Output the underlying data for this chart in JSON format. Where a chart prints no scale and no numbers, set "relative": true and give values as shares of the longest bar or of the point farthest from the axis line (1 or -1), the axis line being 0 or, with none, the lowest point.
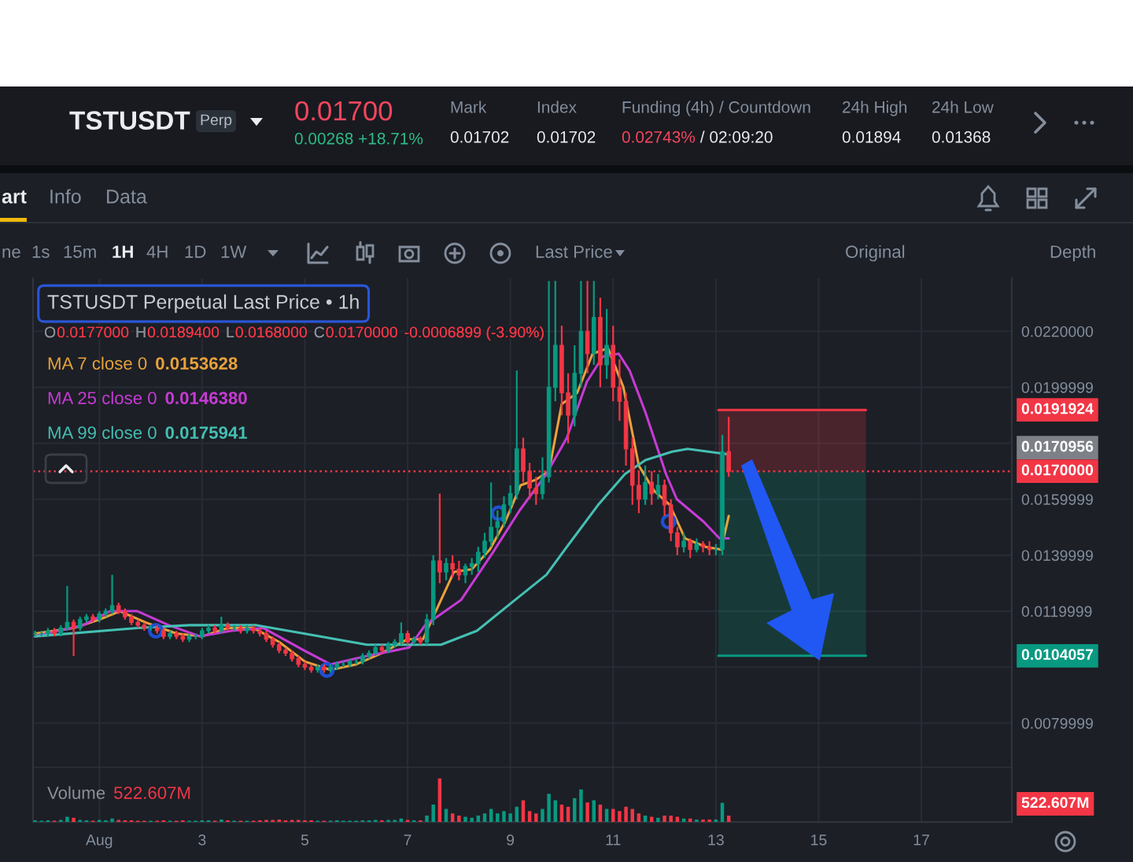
{
  "chart_data": [
    {
      "type": "other",
      "annotations": [
        "TSTUSDT",
        "Perp",
        "0.01700",
        "0.00268 +18.71%",
        "Mark",
        "0.01702",
        "Index",
        "0.01702",
        "Funding (4h) / Countdown",
        "0.02743%",
        "/ 02:09:20",
        "24h High",
        "0.01894",
        "24h Low",
        "0.01368",
        "art",
        "Info",
        "Data",
        "ne",
        "1s",
        "15m",
        "1H",
        "4H",
        "1D",
        "1W",
        "Last Price",
        "Original",
        "Depth"
      ]
    },
    {
      "type": "candlestick",
      "title": "TSTUSDT Perpetual Last Price • 1h",
      "legend": "top left",
      "x": [
        -0.25,
        -0.125,
        0,
        0.125,
        0.25,
        0.375,
        0.5,
        0.625,
        0.75,
        0.875,
        1,
        1.125,
        1.25,
        1.375,
        1.5,
        1.625,
        1.75,
        1.875,
        2,
        2.125,
        2.25,
        2.375,
        2.5,
        2.625,
        2.75,
        2.875,
        3,
        3.125,
        3.25,
        3.375,
        3.5,
        3.625,
        3.75,
        3.875,
        4,
        4.125,
        4.25,
        4.375,
        4.5,
        4.625,
        4.75,
        4.875,
        5,
        5.125,
        5.25,
        5.375,
        5.5,
        5.625,
        5.75,
        5.875,
        6,
        6.125,
        6.25,
        6.375,
        6.5,
        6.625,
        6.75,
        6.875,
        7,
        7.125,
        7.25,
        7.375,
        7.5,
        7.625,
        7.75,
        7.875,
        8,
        8.125,
        8.25,
        8.375,
        8.5,
        8.625,
        8.75,
        8.875,
        9,
        9.125,
        9.25,
        9.375,
        9.5,
        9.625,
        9.75,
        9.875,
        10,
        10.125,
        10.25,
        10.375,
        10.5,
        10.625,
        10.75,
        10.875,
        11,
        11.125,
        11.25,
        11.375,
        11.5,
        11.625,
        11.75,
        11.875,
        12,
        12.125,
        12.25,
        12.375,
        12.5,
        12.625,
        12.75,
        12.875,
        13,
        13.125,
        13.25
      ],
      "ohlc": [
        [
          0.0112,
          0.0113,
          0.0111,
          0.0112
        ],
        [
          0.0112,
          0.0113,
          0.0111,
          0.0112
        ],
        [
          0.0112,
          0.0114,
          0.0111,
          0.0113
        ],
        [
          0.0113,
          0.0114,
          0.0111,
          0.0112
        ],
        [
          0.0112,
          0.0115,
          0.0111,
          0.0114
        ],
        [
          0.0114,
          0.0129,
          0.0113,
          0.0116
        ],
        [
          0.0116,
          0.0117,
          0.0104,
          0.0114
        ],
        [
          0.0114,
          0.0118,
          0.0113,
          0.0117
        ],
        [
          0.0117,
          0.0119,
          0.0116,
          0.0118
        ],
        [
          0.0118,
          0.0119,
          0.0116,
          0.0117
        ],
        [
          0.0117,
          0.012,
          0.0116,
          0.0119
        ],
        [
          0.0119,
          0.0121,
          0.0118,
          0.012
        ],
        [
          0.012,
          0.0133,
          0.0119,
          0.0122
        ],
        [
          0.0122,
          0.0123,
          0.0119,
          0.012
        ],
        [
          0.012,
          0.0121,
          0.0117,
          0.0118
        ],
        [
          0.0118,
          0.0119,
          0.0115,
          0.0116
        ],
        [
          0.0116,
          0.0117,
          0.0114,
          0.0115
        ],
        [
          0.0115,
          0.0116,
          0.0113,
          0.0114
        ],
        [
          0.0114,
          0.0115,
          0.0113,
          0.0114
        ],
        [
          0.0114,
          0.0115,
          0.0112,
          0.0113
        ],
        [
          0.0113,
          0.0114,
          0.011,
          0.0111
        ],
        [
          0.0111,
          0.0113,
          0.011,
          0.0112
        ],
        [
          0.0112,
          0.0113,
          0.011,
          0.0111
        ],
        [
          0.0111,
          0.0112,
          0.0109,
          0.011
        ],
        [
          0.011,
          0.0112,
          0.0109,
          0.0111
        ],
        [
          0.0111,
          0.0112,
          0.011,
          0.0111
        ],
        [
          0.0111,
          0.0114,
          0.011,
          0.0113
        ],
        [
          0.0113,
          0.0115,
          0.0112,
          0.0114
        ],
        [
          0.0114,
          0.0115,
          0.0112,
          0.0113
        ],
        [
          0.0113,
          0.0118,
          0.0112,
          0.0115
        ],
        [
          0.0115,
          0.0116,
          0.0113,
          0.0114
        ],
        [
          0.0114,
          0.0115,
          0.0113,
          0.0114
        ],
        [
          0.0114,
          0.0115,
          0.0112,
          0.0113
        ],
        [
          0.0113,
          0.0115,
          0.0112,
          0.0114
        ],
        [
          0.0114,
          0.0115,
          0.0112,
          0.0113
        ],
        [
          0.0113,
          0.0114,
          0.0111,
          0.0112
        ],
        [
          0.0112,
          0.0113,
          0.0109,
          0.011
        ],
        [
          0.011,
          0.0111,
          0.0107,
          0.0108
        ],
        [
          0.0108,
          0.0109,
          0.0105,
          0.0106
        ],
        [
          0.0106,
          0.0107,
          0.0104,
          0.0105
        ],
        [
          0.0105,
          0.0106,
          0.0102,
          0.0103
        ],
        [
          0.0103,
          0.0104,
          0.01,
          0.0101
        ],
        [
          0.0101,
          0.0102,
          0.0099,
          0.01
        ],
        [
          0.01,
          0.0101,
          0.0098,
          0.0099
        ],
        [
          0.0099,
          0.0101,
          0.0098,
          0.01
        ],
        [
          0.01,
          0.0101,
          0.0098,
          0.0099
        ],
        [
          0.0099,
          0.0101,
          0.0098,
          0.01
        ],
        [
          0.01,
          0.0102,
          0.0099,
          0.0101
        ],
        [
          0.0101,
          0.0102,
          0.01,
          0.0101
        ],
        [
          0.0101,
          0.0103,
          0.01,
          0.0102
        ],
        [
          0.0102,
          0.0103,
          0.0101,
          0.0102
        ],
        [
          0.0102,
          0.0105,
          0.0101,
          0.0104
        ],
        [
          0.0104,
          0.0106,
          0.0103,
          0.0105
        ],
        [
          0.0105,
          0.0108,
          0.0104,
          0.0107
        ],
        [
          0.0107,
          0.0108,
          0.0105,
          0.0106
        ],
        [
          0.0106,
          0.0109,
          0.0105,
          0.0108
        ],
        [
          0.0108,
          0.011,
          0.0107,
          0.0109
        ],
        [
          0.0109,
          0.0116,
          0.0108,
          0.0112
        ],
        [
          0.0112,
          0.0113,
          0.0108,
          0.0109
        ],
        [
          0.0109,
          0.0111,
          0.0108,
          0.011
        ],
        [
          0.011,
          0.0111,
          0.0108,
          0.0109
        ],
        [
          0.0109,
          0.0119,
          0.0108,
          0.0117
        ],
        [
          0.0117,
          0.014,
          0.0115,
          0.0138
        ],
        [
          0.0138,
          0.0162,
          0.013,
          0.0134
        ],
        [
          0.0134,
          0.0139,
          0.0131,
          0.0137
        ],
        [
          0.0137,
          0.014,
          0.0132,
          0.0135
        ],
        [
          0.0135,
          0.0138,
          0.0131,
          0.0133
        ],
        [
          0.0133,
          0.0137,
          0.013,
          0.0136
        ],
        [
          0.0136,
          0.0139,
          0.0133,
          0.0137
        ],
        [
          0.0137,
          0.0143,
          0.0134,
          0.0141
        ],
        [
          0.0141,
          0.0148,
          0.0139,
          0.0145
        ],
        [
          0.0145,
          0.0166,
          0.0143,
          0.015
        ],
        [
          0.015,
          0.0156,
          0.0146,
          0.0152
        ],
        [
          0.0152,
          0.0161,
          0.015,
          0.0158
        ],
        [
          0.0158,
          0.0165,
          0.0155,
          0.0162
        ],
        [
          0.0162,
          0.0206,
          0.016,
          0.0178
        ],
        [
          0.0178,
          0.0182,
          0.0166,
          0.017
        ],
        [
          0.017,
          0.0173,
          0.016,
          0.0164
        ],
        [
          0.0164,
          0.0168,
          0.0158,
          0.0162
        ],
        [
          0.0162,
          0.0175,
          0.016,
          0.0168
        ],
        [
          0.0168,
          0.0238,
          0.0166,
          0.02
        ],
        [
          0.02,
          0.0238,
          0.0195,
          0.0215
        ],
        [
          0.0215,
          0.0222,
          0.019,
          0.0198
        ],
        [
          0.0198,
          0.0205,
          0.018,
          0.019
        ],
        [
          0.019,
          0.0215,
          0.0186,
          0.0205
        ],
        [
          0.0205,
          0.0238,
          0.02,
          0.022
        ],
        [
          0.022,
          0.0238,
          0.0205,
          0.0212
        ],
        [
          0.0212,
          0.0238,
          0.0208,
          0.0225
        ],
        [
          0.0225,
          0.0232,
          0.02,
          0.0208
        ],
        [
          0.0208,
          0.0228,
          0.0203,
          0.0215
        ],
        [
          0.0215,
          0.0222,
          0.0195,
          0.02
        ],
        [
          0.02,
          0.021,
          0.0188,
          0.0195
        ],
        [
          0.0195,
          0.0198,
          0.0172,
          0.0178
        ],
        [
          0.0178,
          0.0182,
          0.0158,
          0.0165
        ],
        [
          0.0165,
          0.017,
          0.0155,
          0.016
        ],
        [
          0.016,
          0.0172,
          0.0158,
          0.0166
        ],
        [
          0.0166,
          0.017,
          0.0158,
          0.0162
        ],
        [
          0.0162,
          0.0169,
          0.016,
          0.0165
        ],
        [
          0.0165,
          0.0167,
          0.0154,
          0.0158
        ],
        [
          0.0158,
          0.016,
          0.0145,
          0.0148
        ],
        [
          0.0148,
          0.015,
          0.014,
          0.0143
        ],
        [
          0.0143,
          0.0148,
          0.0141,
          0.0145
        ],
        [
          0.0145,
          0.0146,
          0.0139,
          0.0142
        ],
        [
          0.0142,
          0.0146,
          0.0141,
          0.0144
        ],
        [
          0.0144,
          0.0145,
          0.0141,
          0.0143
        ],
        [
          0.0143,
          0.0145,
          0.014,
          0.0142
        ],
        [
          0.0142,
          0.0144,
          0.014,
          0.0142
        ],
        [
          0.0142,
          0.0183,
          0.014,
          0.0177
        ],
        [
          0.0177,
          0.01894,
          0.0168,
          0.017
        ]
      ],
      "colors": [
        "#089981",
        "#089981",
        "#089981",
        "#f23645",
        "#089981",
        "#089981",
        "#f23645",
        "#089981",
        "#089981",
        "#f23645",
        "#089981",
        "#089981",
        "#089981",
        "#f23645",
        "#f23645",
        "#f23645",
        "#f23645",
        "#f23645",
        "#089981",
        "#f23645",
        "#f23645",
        "#089981",
        "#f23645",
        "#f23645",
        "#089981",
        "#089981",
        "#089981",
        "#089981",
        "#f23645",
        "#089981",
        "#f23645",
        "#089981",
        "#f23645",
        "#089981",
        "#f23645",
        "#f23645",
        "#f23645",
        "#f23645",
        "#f23645",
        "#f23645",
        "#f23645",
        "#f23645",
        "#f23645",
        "#f23645",
        "#089981",
        "#f23645",
        "#089981",
        "#089981",
        "#089981",
        "#089981",
        "#089981",
        "#089981",
        "#089981",
        "#089981",
        "#f23645",
        "#089981",
        "#089981",
        "#089981",
        "#f23645",
        "#089981",
        "#f23645",
        "#089981",
        "#089981",
        "#f23645",
        "#089981",
        "#f23645",
        "#f23645",
        "#089981",
        "#089981",
        "#089981",
        "#089981",
        "#089981",
        "#089981",
        "#089981",
        "#089981",
        "#089981",
        "#f23645",
        "#f23645",
        "#f23645",
        "#089981",
        "#089981",
        "#089981",
        "#f23645",
        "#f23645",
        "#089981",
        "#089981",
        "#f23645",
        "#089981",
        "#f23645",
        "#089981",
        "#f23645",
        "#f23645",
        "#f23645",
        "#f23645",
        "#f23645",
        "#089981",
        "#f23645",
        "#089981",
        "#f23645",
        "#f23645",
        "#f23645",
        "#089981",
        "#f23645",
        "#089981",
        "#f23645",
        "#f23645",
        "#089981",
        "#089981",
        "#f23645"
      ],
      "series": [
        {
          "type": "line",
          "color": "#f23645",
          "x": [
            13.05,
            15.92
          ],
          "values": [
            0.0191924,
            0.0191924
          ],
          "lower": [
            0.017,
            0.017
          ],
          "upper": [
            0.0191924,
            0.0191924
          ]
        },
        {
          "type": "line",
          "color": "#089981",
          "x": [
            13.05,
            15.92
          ],
          "values": [
            0.0104057,
            0.0104057
          ],
          "lower": [
            0.0104057,
            0.0104057
          ],
          "upper": [
            0.017,
            0.017
          ]
        },
        {
          "type": "line",
          "name": "MA 7 close 0",
          "color": "#e9a23b",
          "x": [
            -0.25,
            0.5,
            1,
            1.4,
            1.9,
            2.5,
            3,
            3.5,
            4,
            4.5,
            5,
            5.5,
            6,
            6.5,
            7,
            7.3,
            7.6,
            7.9,
            8.25,
            8.6,
            8.9,
            9.2,
            9.5,
            9.75,
            10,
            10.3,
            10.6,
            10.9,
            11.2,
            11.5,
            11.8,
            12.1,
            12.4,
            12.8,
            13.1,
            13.25
          ],
          "values": [
            0.0112,
            0.0114,
            0.0117,
            0.012,
            0.0116,
            0.0112,
            0.0111,
            0.0114,
            0.0114,
            0.0109,
            0.0102,
            0.0099,
            0.0101,
            0.0105,
            0.011,
            0.011,
            0.0122,
            0.0134,
            0.0135,
            0.0142,
            0.0152,
            0.0165,
            0.0167,
            0.017,
            0.0194,
            0.0198,
            0.0212,
            0.0214,
            0.02,
            0.0172,
            0.0163,
            0.0158,
            0.0146,
            0.0143,
            0.0142,
            0.0154
          ]
        },
        {
          "type": "line",
          "name": "MA 25 close 0",
          "color": "#c63bd4",
          "x": [
            -0.25,
            0.69,
            1.21,
            1.74,
            2.35,
            2.96,
            3.57,
            4.19,
            4.98,
            5.5,
            6.21,
            7.03,
            7.34,
            8.04,
            8.66,
            9.18,
            9.7,
            10.1,
            10.49,
            10.8,
            11.11,
            11.32,
            11.63,
            12.03,
            12.24,
            12.76,
            13.07,
            13.25
          ],
          "values": [
            0.0111,
            0.0115,
            0.012,
            0.012,
            0.0115,
            0.0111,
            0.0113,
            0.0114,
            0.0106,
            0.0101,
            0.0104,
            0.0107,
            0.0115,
            0.0124,
            0.0141,
            0.0156,
            0.0169,
            0.0182,
            0.0202,
            0.0211,
            0.0212,
            0.0206,
            0.0191,
            0.0169,
            0.016,
            0.0152,
            0.0146,
            0.0146
          ]
        },
        {
          "type": "line",
          "name": "MA 99 close 0",
          "color": "#45bfb3",
          "x": [
            -0.25,
            1.74,
            2.75,
            4.06,
            4.98,
            6.21,
            7.03,
            7.65,
            8.35,
            9.09,
            9.7,
            10.1,
            10.71,
            11.23,
            11.63,
            12.15,
            12.45,
            13.25
          ],
          "values": [
            0.0111,
            0.0114,
            0.0115,
            0.0115,
            0.0112,
            0.0108,
            0.0108,
            0.0108,
            0.0113,
            0.0124,
            0.0133,
            0.0143,
            0.0158,
            0.0169,
            0.0174,
            0.0177,
            0.0178,
            0.0176
          ]
        },
        {
          "type": "scatter",
          "color": "#1f4fd1",
          "marker": "circle",
          "x": [
            2.1,
            5.43,
            8.77,
            12.08
          ],
          "values": [
            0.0113,
            0.0099,
            0.0155,
            0.0152
          ]
        }
      ],
      "xlim": [
        -0.29,
        18.76
      ],
      "xticks": [
        1,
        3,
        5,
        7,
        9,
        11,
        13,
        15,
        17
      ],
      "ylim": [
        0.00641,
        0.02389
      ],
      "yticks": [
        {
          "value": 0.022,
          "label": "0.0220000"
        },
        0.0199999,
        {
          "value": 0.0179999,
          "label": null
        },
        0.0159999,
        0.0139999,
        0.0119999,
        {
          "value": 0.0099999,
          "label": null
        },
        0.0079999
      ],
      "grid": true,
      "tick_labels": "y",
      "ref_lines": [
        {
          "axis": "y",
          "value": 0.017,
          "label": "0.0170000",
          "color": "#f23645",
          "line_style": "dotted"
        }
      ],
      "annotations": [
        "O",
        "0.0177000",
        "H",
        "0.0189400",
        "L",
        "0.0168000",
        "C",
        "0.0170000",
        "-0.0006899 (-3.90%)",
        "0.0153628",
        "0.0146380",
        "0.0175941",
        "0.0191924",
        "0.0170956",
        "0.0104057"
      ]
    },
    {
      "type": "bar",
      "title": "Volume",
      "relative": true,
      "x": [
        -0.25,
        -0.125,
        0,
        0.125,
        0.25,
        0.375,
        0.5,
        0.625,
        0.75,
        0.875,
        1,
        1.125,
        1.25,
        1.375,
        1.5,
        1.625,
        1.75,
        1.875,
        2,
        2.125,
        2.25,
        2.375,
        2.5,
        2.625,
        2.75,
        2.875,
        3,
        3.125,
        3.25,
        3.375,
        3.5,
        3.625,
        3.75,
        3.875,
        4,
        4.125,
        4.25,
        4.375,
        4.5,
        4.625,
        4.75,
        4.875,
        5,
        5.125,
        5.25,
        5.375,
        5.5,
        5.625,
        5.75,
        5.875,
        6,
        6.125,
        6.25,
        6.375,
        6.5,
        6.625,
        6.75,
        6.875,
        7,
        7.125,
        7.25,
        7.375,
        7.5,
        7.625,
        7.75,
        7.875,
        8,
        8.125,
        8.25,
        8.375,
        8.5,
        8.625,
        8.75,
        8.875,
        9,
        9.125,
        9.25,
        9.375,
        9.5,
        9.625,
        9.75,
        9.875,
        10,
        10.125,
        10.25,
        10.375,
        10.5,
        10.625,
        10.75,
        10.875,
        11,
        11.125,
        11.25,
        11.375,
        11.5,
        11.625,
        11.75,
        11.875,
        12,
        12.125,
        12.25,
        12.375,
        12.5,
        12.625,
        12.75,
        12.875,
        13,
        13.125,
        13.25
      ],
      "values": [
        0.04,
        0.03,
        0.04,
        0.03,
        0.05,
        0.12,
        0.1,
        0.05,
        0.04,
        0.03,
        0.05,
        0.04,
        0.08,
        0.05,
        0.04,
        0.04,
        0.03,
        0.03,
        0.03,
        0.03,
        0.04,
        0.03,
        0.03,
        0.04,
        0.03,
        0.03,
        0.04,
        0.04,
        0.03,
        0.06,
        0.04,
        0.03,
        0.03,
        0.03,
        0.03,
        0.04,
        0.05,
        0.05,
        0.06,
        0.04,
        0.05,
        0.05,
        0.04,
        0.04,
        0.03,
        0.03,
        0.03,
        0.04,
        0.03,
        0.03,
        0.03,
        0.04,
        0.04,
        0.05,
        0.04,
        0.05,
        0.05,
        0.08,
        0.05,
        0.04,
        0.04,
        0.15,
        0.4,
        1,
        0.3,
        0.2,
        0.15,
        0.12,
        0.1,
        0.15,
        0.2,
        0.3,
        0.2,
        0.25,
        0.2,
        0.35,
        0.5,
        0.25,
        0.2,
        0.3,
        0.65,
        0.5,
        0.4,
        0.35,
        0.55,
        0.75,
        0.45,
        0.5,
        0.4,
        0.3,
        0.3,
        0.25,
        0.35,
        0.3,
        0.2,
        0.15,
        0.12,
        0.1,
        0.15,
        0.15,
        0.12,
        0.08,
        0.08,
        0.06,
        0.06,
        0.06,
        0.06,
        0.44,
        0.15
      ],
      "colors": [
        "#089981",
        "#089981",
        "#089981",
        "#f23645",
        "#089981",
        "#089981",
        "#f23645",
        "#089981",
        "#089981",
        "#f23645",
        "#089981",
        "#089981",
        "#089981",
        "#f23645",
        "#f23645",
        "#f23645",
        "#f23645",
        "#f23645",
        "#089981",
        "#f23645",
        "#f23645",
        "#089981",
        "#f23645",
        "#f23645",
        "#089981",
        "#089981",
        "#089981",
        "#089981",
        "#f23645",
        "#089981",
        "#f23645",
        "#089981",
        "#f23645",
        "#089981",
        "#f23645",
        "#f23645",
        "#f23645",
        "#f23645",
        "#f23645",
        "#f23645",
        "#f23645",
        "#f23645",
        "#f23645",
        "#f23645",
        "#089981",
        "#f23645",
        "#089981",
        "#089981",
        "#089981",
        "#089981",
        "#089981",
        "#089981",
        "#089981",
        "#089981",
        "#f23645",
        "#089981",
        "#089981",
        "#089981",
        "#f23645",
        "#089981",
        "#f23645",
        "#089981",
        "#089981",
        "#f23645",
        "#089981",
        "#f23645",
        "#f23645",
        "#089981",
        "#089981",
        "#089981",
        "#089981",
        "#089981",
        "#089981",
        "#089981",
        "#089981",
        "#089981",
        "#f23645",
        "#f23645",
        "#f23645",
        "#089981",
        "#089981",
        "#089981",
        "#f23645",
        "#f23645",
        "#089981",
        "#089981",
        "#f23645",
        "#089981",
        "#f23645",
        "#089981",
        "#f23645",
        "#f23645",
        "#f23645",
        "#f23645",
        "#f23645",
        "#089981",
        "#f23645",
        "#089981",
        "#f23645",
        "#f23645",
        "#f23645",
        "#089981",
        "#f23645",
        "#089981",
        "#f23645",
        "#f23645",
        "#089981",
        "#089981",
        "#f23645"
      ],
      "xlim": [
        -0.29,
        18.76
      ],
      "xticks": [
        {
          "value": 1,
          "label": "Aug"
        },
        3,
        5,
        7,
        9,
        11,
        13,
        15,
        17
      ],
      "grid": "x",
      "tick_labels": "x",
      "annotations": [
        "522.607M",
        "522.607M"
      ]
    }
  ]
}
